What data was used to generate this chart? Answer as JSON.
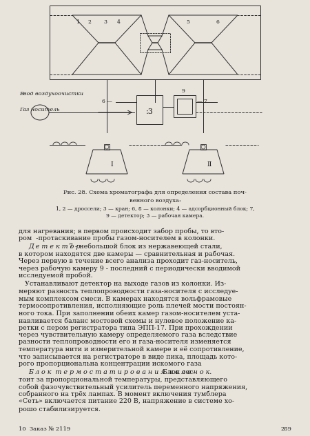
{
  "page_color": "#e8e4dc",
  "text_color": "#1a1a1a",
  "diagram_color": "#2a2a2a",
  "fig_title": "Рис. 28. Схема хроматографа для определения состава поч-",
  "fig_title2": "венного воздуха:",
  "fig_cap": "1, 2 — дроссели; 3 — кран; 6, 8 — колонки; 4 — адсорбционный блок; 7,",
  "fig_cap2": "9 — детектор; 3 — рабочая камера.",
  "label_air": "Ввод воздухоочистки",
  "label_gas": "Газ носитель",
  "p1": "для нагревания; в первом происходит забор пробы, то вто-",
  "p1b": "ром  -протаскивание пробы газом-носителем в колонки.",
  "p2head": "Д е т е к т о р",
  "p2": " 7 - небольшой блок из нержавеющей стали,",
  "p2c": "в котором находятся две камеры — сравнительная и рабочая.",
  "p2d": "Через первую в течение всего анализа проходит газ-носитель,",
  "p2e": "через рабочую камеру 9 - последний с периодически вводимой",
  "p2f": "исследуемой пробой.",
  "p3a": "   Устанавливают детектор на выходе газов из колонки. Из-",
  "p3b": "меряют разность теплопроводности газа-носителя с исследуе-",
  "p3c": "мым комплексом смеси. В камерах находятся вольфрамовые",
  "p3d": "термосопротивления, исполняющие роль плечей мости постоян-",
  "p3e": "ного тока. При заполнении обеих камер газом-носителем уста-",
  "p3f": "навливается баланс мостовой схемы и нулевое положение ка-",
  "p3g": "ретки с пером регистратора типа ЭПП-17. При прохождении",
  "p3h": "через чувствительную камеру определяемого газа вследствие",
  "p3i": "разности теплопроводности его и газа-носителя изменяется",
  "p3j": "температура нити и измерительной камере и её сопротивление,",
  "p3k": "что записывается на регистраторе в виде пика, площадь кото-",
  "p3l": "рого пропорциональна концентрации искомого газа",
  "p4head": "Б л о к  т е р м о с т а т и р о в а н и я  к о л о н о к.",
  "p4a": " Блок сос-",
  "p4b": "тоит за пропорциональной температуры, представляющего",
  "p4c": "собой фазочувствительный усилитель переменного напряжения,",
  "p4d": "собранного на трёх лампах. В момент включения тумблера",
  "p4e": "«Сеть» включается питание 220 В, напряжение в системе хо-",
  "p4f": "рошо стабилизируется.",
  "footer_l": "10  Заказ № 2119",
  "footer_r": "289"
}
